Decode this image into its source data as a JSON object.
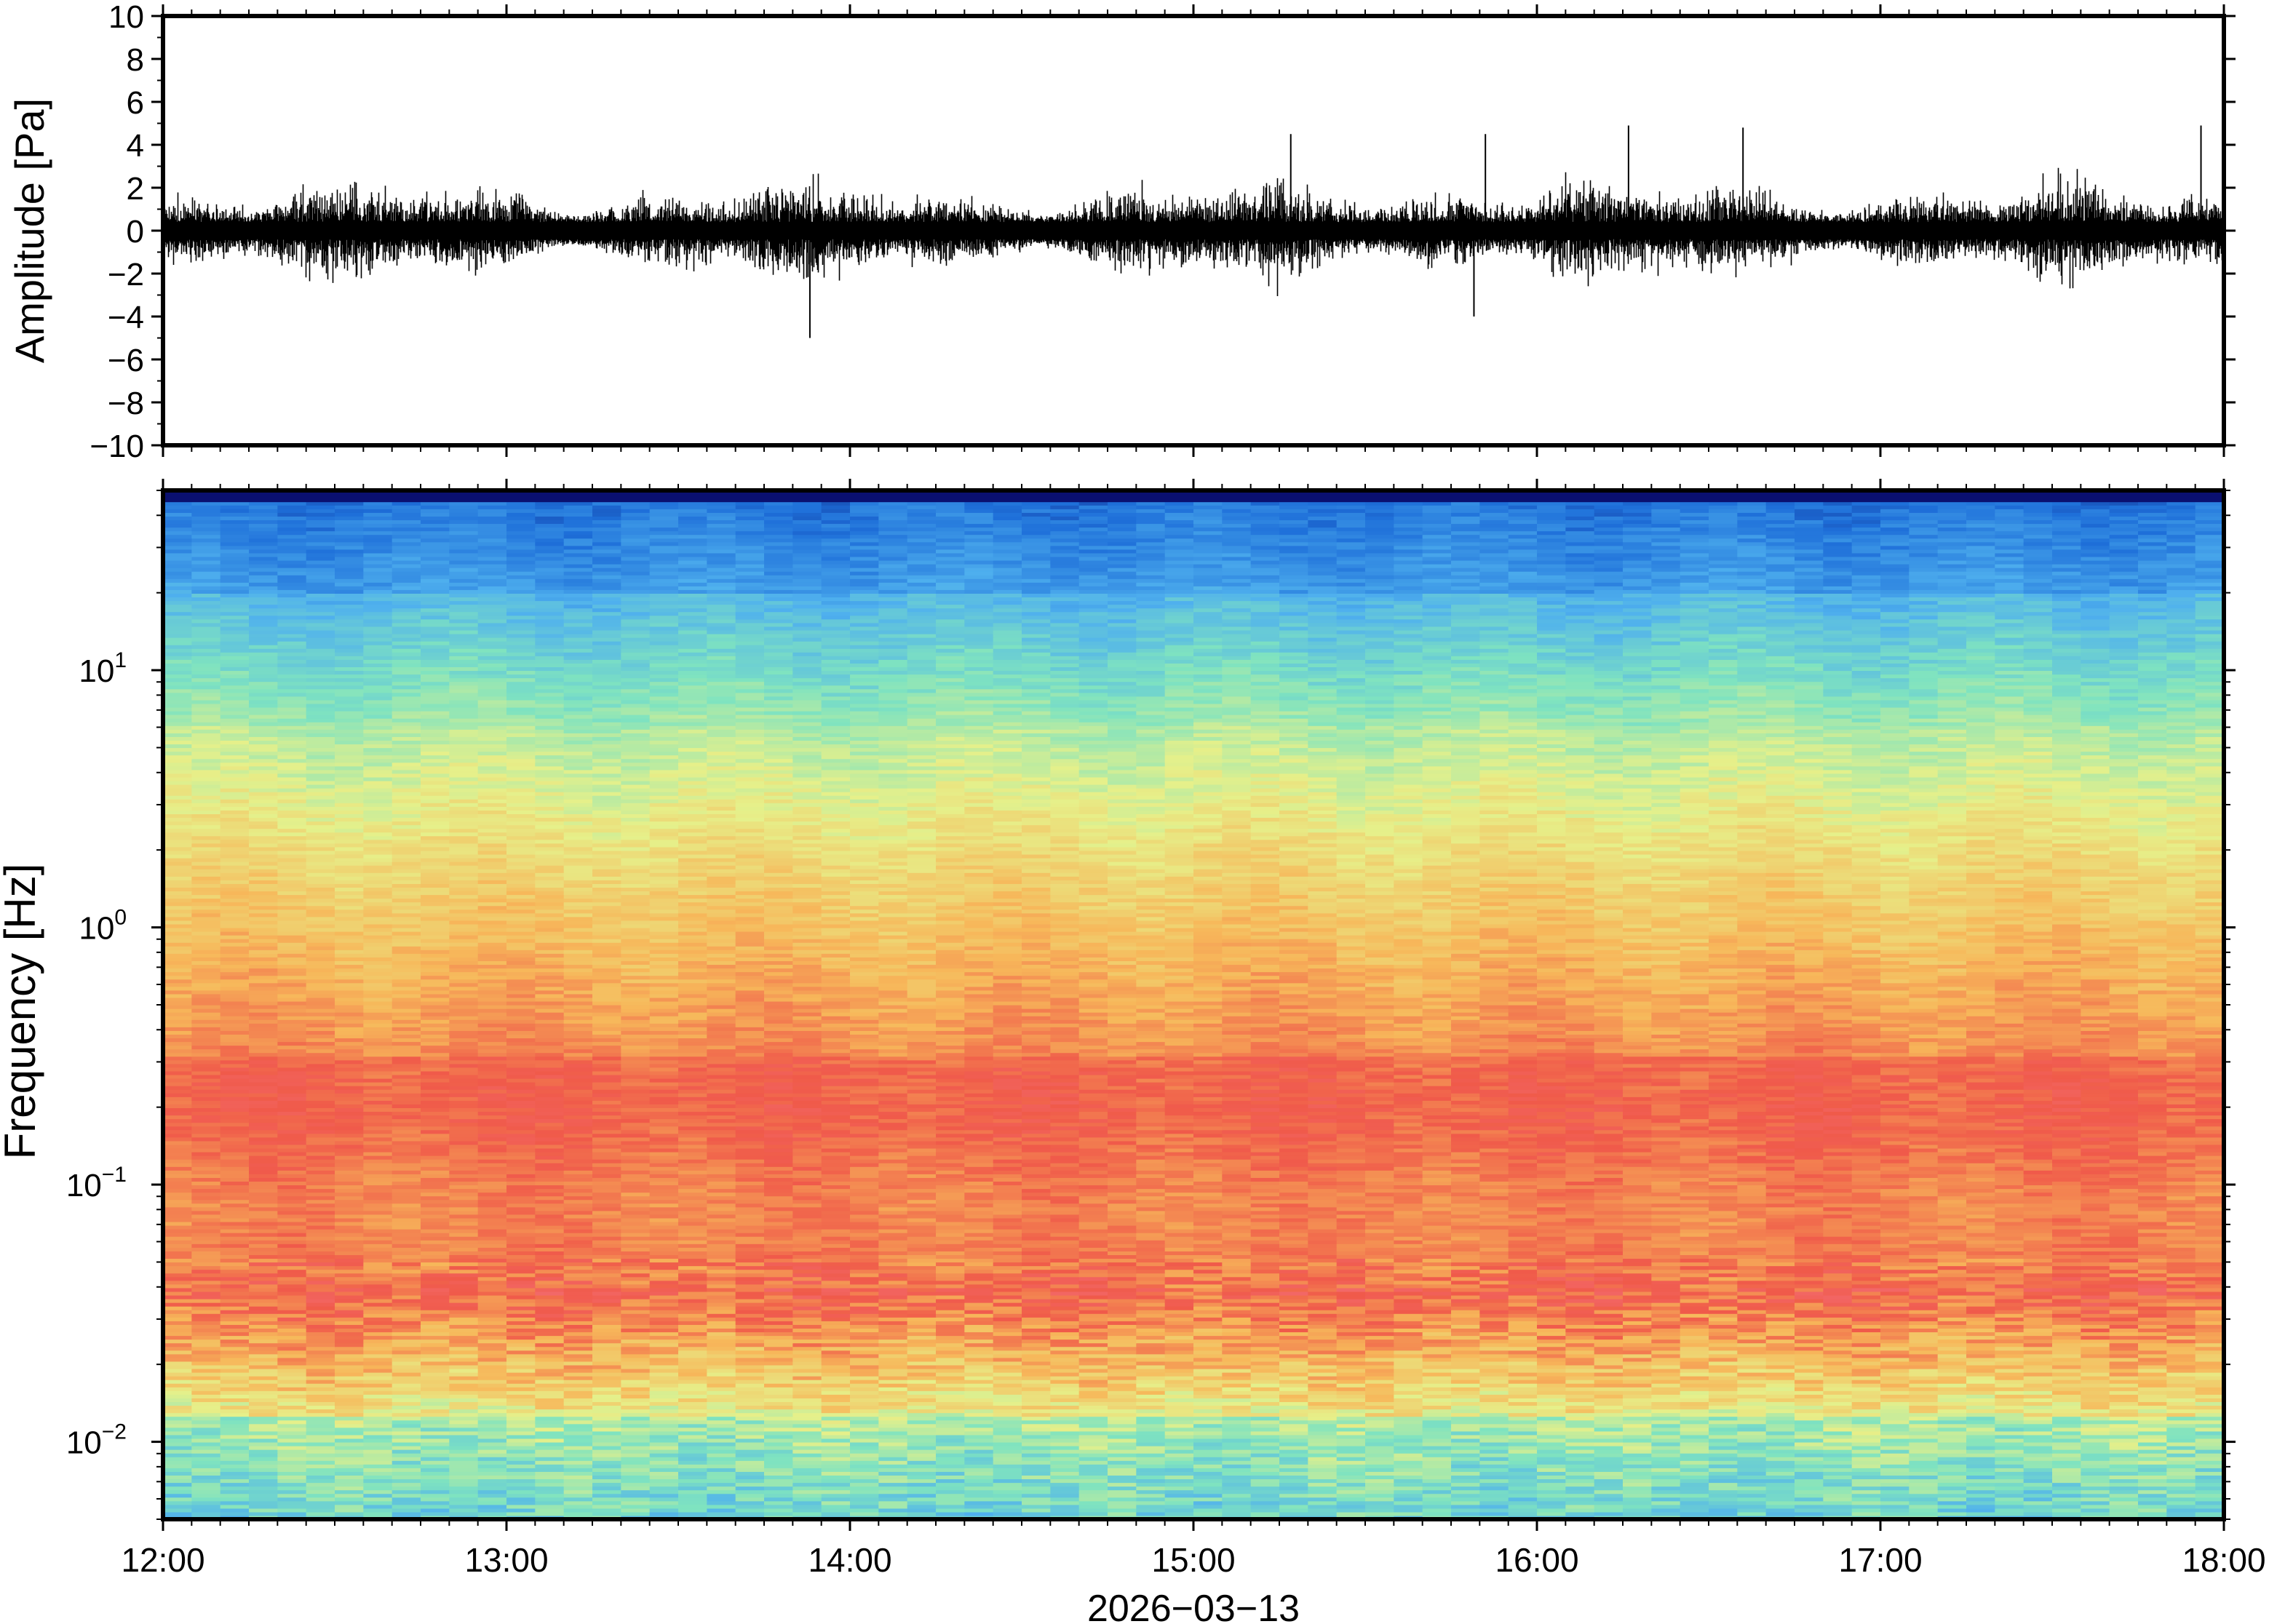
{
  "chart_data": [
    {
      "type": "line",
      "panel": "waveform",
      "title": "",
      "xlabel": "",
      "ylabel": "Amplitude [Pa]",
      "ylim": [
        -10,
        10
      ],
      "yticks": [
        "10",
        "8",
        "6",
        "4",
        "2",
        "0",
        "−2",
        "−4",
        "−6",
        "−8",
        "−10"
      ],
      "ytick_values": [
        10,
        8,
        6,
        4,
        2,
        0,
        -2,
        -4,
        -6,
        -8,
        -10
      ],
      "xlim": [
        "12:00",
        "18:00"
      ],
      "series": [
        {
          "color": "#000000",
          "description_values": "dense infrasound pressure trace, mostly within ±2 Pa",
          "peaks": [
            {
              "time": "13:53",
              "value": -5.0
            },
            {
              "time": "15:17",
              "value": 4.5
            },
            {
              "time": "15:49",
              "value": -4.0
            },
            {
              "time": "15:51",
              "value": 4.5
            },
            {
              "time": "16:16",
              "value": 4.9
            },
            {
              "time": "16:36",
              "value": 4.8
            },
            {
              "time": "17:56",
              "value": 4.9
            }
          ]
        }
      ]
    },
    {
      "type": "heatmap",
      "panel": "spectrogram",
      "title": "",
      "xlabel": "2026−03−13",
      "ylabel": "Frequency [Hz]",
      "yscale": "log",
      "ylim": [
        0.005,
        50
      ],
      "ytick_values": [
        0.01,
        0.1,
        1,
        10
      ],
      "yticks": [
        {
          "base": "10",
          "exp": "−2"
        },
        {
          "base": "10",
          "exp": "−1"
        },
        {
          "base": "10",
          "exp": "0"
        },
        {
          "base": "10",
          "exp": "1"
        }
      ],
      "xticks": [
        "12:00",
        "13:00",
        "14:00",
        "15:00",
        "16:00",
        "17:00",
        "18:00"
      ],
      "colormap": [
        "#0a1070",
        "#1e6fd9",
        "#4fb0ee",
        "#7fe3c0",
        "#e6f08a",
        "#f7b75a",
        "#f05a4a",
        "#f4707a"
      ],
      "bands": [
        {
          "freq_from": 50,
          "freq_to": 45,
          "color": "#0a1070"
        },
        {
          "freq_from": 45,
          "freq_to": 20,
          "color": "#3a9ee8"
        },
        {
          "freq_from": 20,
          "freq_to": 6,
          "color": "#7fe3c0"
        },
        {
          "freq_from": 6,
          "freq_to": 1.5,
          "color": "#e6f08a"
        },
        {
          "freq_from": 1.5,
          "freq_to": 0.3,
          "color": "#f7a95a"
        },
        {
          "freq_from": 0.3,
          "freq_to": 0.04,
          "color": "#f05a4a"
        },
        {
          "freq_from": 0.04,
          "freq_to": 0.012,
          "color": "#f7c85a"
        },
        {
          "freq_from": 0.012,
          "freq_to": 0.005,
          "color": "#7ee5b8"
        }
      ]
    }
  ]
}
